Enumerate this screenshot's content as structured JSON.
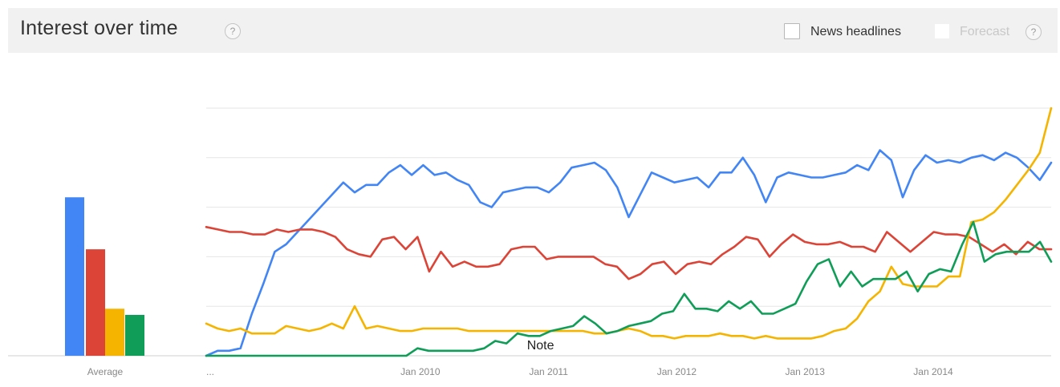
{
  "header": {
    "title": "Interest over time",
    "title_help": "?",
    "news_label": "News headlines",
    "news_checked": false,
    "forecast_label": "Forecast",
    "forecast_help": "?"
  },
  "chart_data": {
    "type": "line",
    "xlim": [
      2008.33,
      2014.92
    ],
    "ylim": [
      0,
      100
    ],
    "grid": true,
    "x_tick_labels": [
      "...",
      "Jan 2010",
      "Jan 2011",
      "Jan 2012",
      "Jan 2013",
      "Jan 2014"
    ],
    "x_tick_values": [
      2008.33,
      2010.0,
      2011.0,
      2012.0,
      2013.0,
      2014.0
    ],
    "y_grid": [
      20,
      40,
      60,
      80,
      100
    ],
    "annotation": {
      "label": "Note",
      "x": 2011.0
    },
    "average_label": "Average",
    "averages": [
      {
        "color": "#4285f4",
        "value": 64
      },
      {
        "color": "#db4437",
        "value": 43
      },
      {
        "color": "#f4b400",
        "value": 19
      },
      {
        "color": "#0f9d58",
        "value": 16.5
      }
    ],
    "series": [
      {
        "color": "#4285f4",
        "values": [
          0,
          2,
          2,
          3,
          17,
          29,
          42,
          45,
          50,
          55,
          60,
          65,
          70,
          66,
          69,
          69,
          74,
          77,
          73,
          77,
          73,
          74,
          71,
          69,
          62,
          60,
          66,
          67,
          68,
          68,
          66,
          70,
          76,
          77,
          78,
          75,
          68,
          56,
          65,
          74,
          72,
          70,
          71,
          72,
          68,
          74,
          74,
          80,
          73,
          62,
          72,
          74,
          73,
          72,
          72,
          73,
          74,
          77,
          75,
          83,
          79,
          64,
          75,
          81,
          78,
          79,
          78,
          80,
          81,
          79,
          82,
          80,
          76,
          71,
          78
        ]
      },
      {
        "color": "#db4437",
        "values": [
          52,
          51,
          50,
          50,
          49,
          49,
          51,
          50,
          51,
          51,
          50,
          48,
          43,
          41,
          40,
          47,
          48,
          43,
          48,
          34,
          42,
          36,
          38,
          36,
          36,
          37,
          43,
          44,
          44,
          39,
          40,
          40,
          40,
          40,
          37,
          36,
          31,
          33,
          37,
          38,
          33,
          37,
          38,
          37,
          41,
          44,
          48,
          47,
          40,
          45,
          49,
          46,
          45,
          45,
          46,
          44,
          44,
          42,
          50,
          46,
          42,
          46,
          50,
          49,
          49,
          48,
          45,
          42,
          45,
          41,
          46,
          43,
          43
        ]
      },
      {
        "color": "#f4b400",
        "values": [
          13,
          11,
          10,
          11,
          9,
          9,
          9,
          12,
          11,
          10,
          11,
          13,
          11,
          20,
          11,
          12,
          11,
          10,
          10,
          11,
          11,
          11,
          11,
          10,
          10,
          10,
          10,
          10,
          10,
          10,
          10,
          10,
          10,
          10,
          9,
          9,
          10,
          11,
          10,
          8,
          8,
          7,
          8,
          8,
          8,
          9,
          8,
          8,
          7,
          8,
          7,
          7,
          7,
          7,
          8,
          10,
          11,
          15,
          22,
          26,
          36,
          29,
          28,
          28,
          28,
          32,
          32,
          54,
          55,
          58,
          63,
          69,
          75,
          82,
          100
        ]
      },
      {
        "color": "#0f9d58",
        "values": [
          0,
          0,
          0,
          0,
          0,
          0,
          0,
          0,
          0,
          0,
          0,
          0,
          0,
          0,
          0,
          0,
          0,
          0,
          0,
          3,
          2,
          2,
          2,
          2,
          2,
          3,
          6,
          5,
          9,
          8,
          8,
          10,
          11,
          12,
          16,
          13,
          9,
          10,
          12,
          13,
          14,
          17,
          18,
          25,
          19,
          19,
          18,
          22,
          19,
          22,
          17,
          17,
          19,
          21,
          30,
          37,
          39,
          28,
          34,
          28,
          31,
          31,
          31,
          34,
          26,
          33,
          35,
          34,
          45,
          54,
          38,
          41,
          42,
          42,
          42,
          46,
          38
        ]
      }
    ]
  }
}
